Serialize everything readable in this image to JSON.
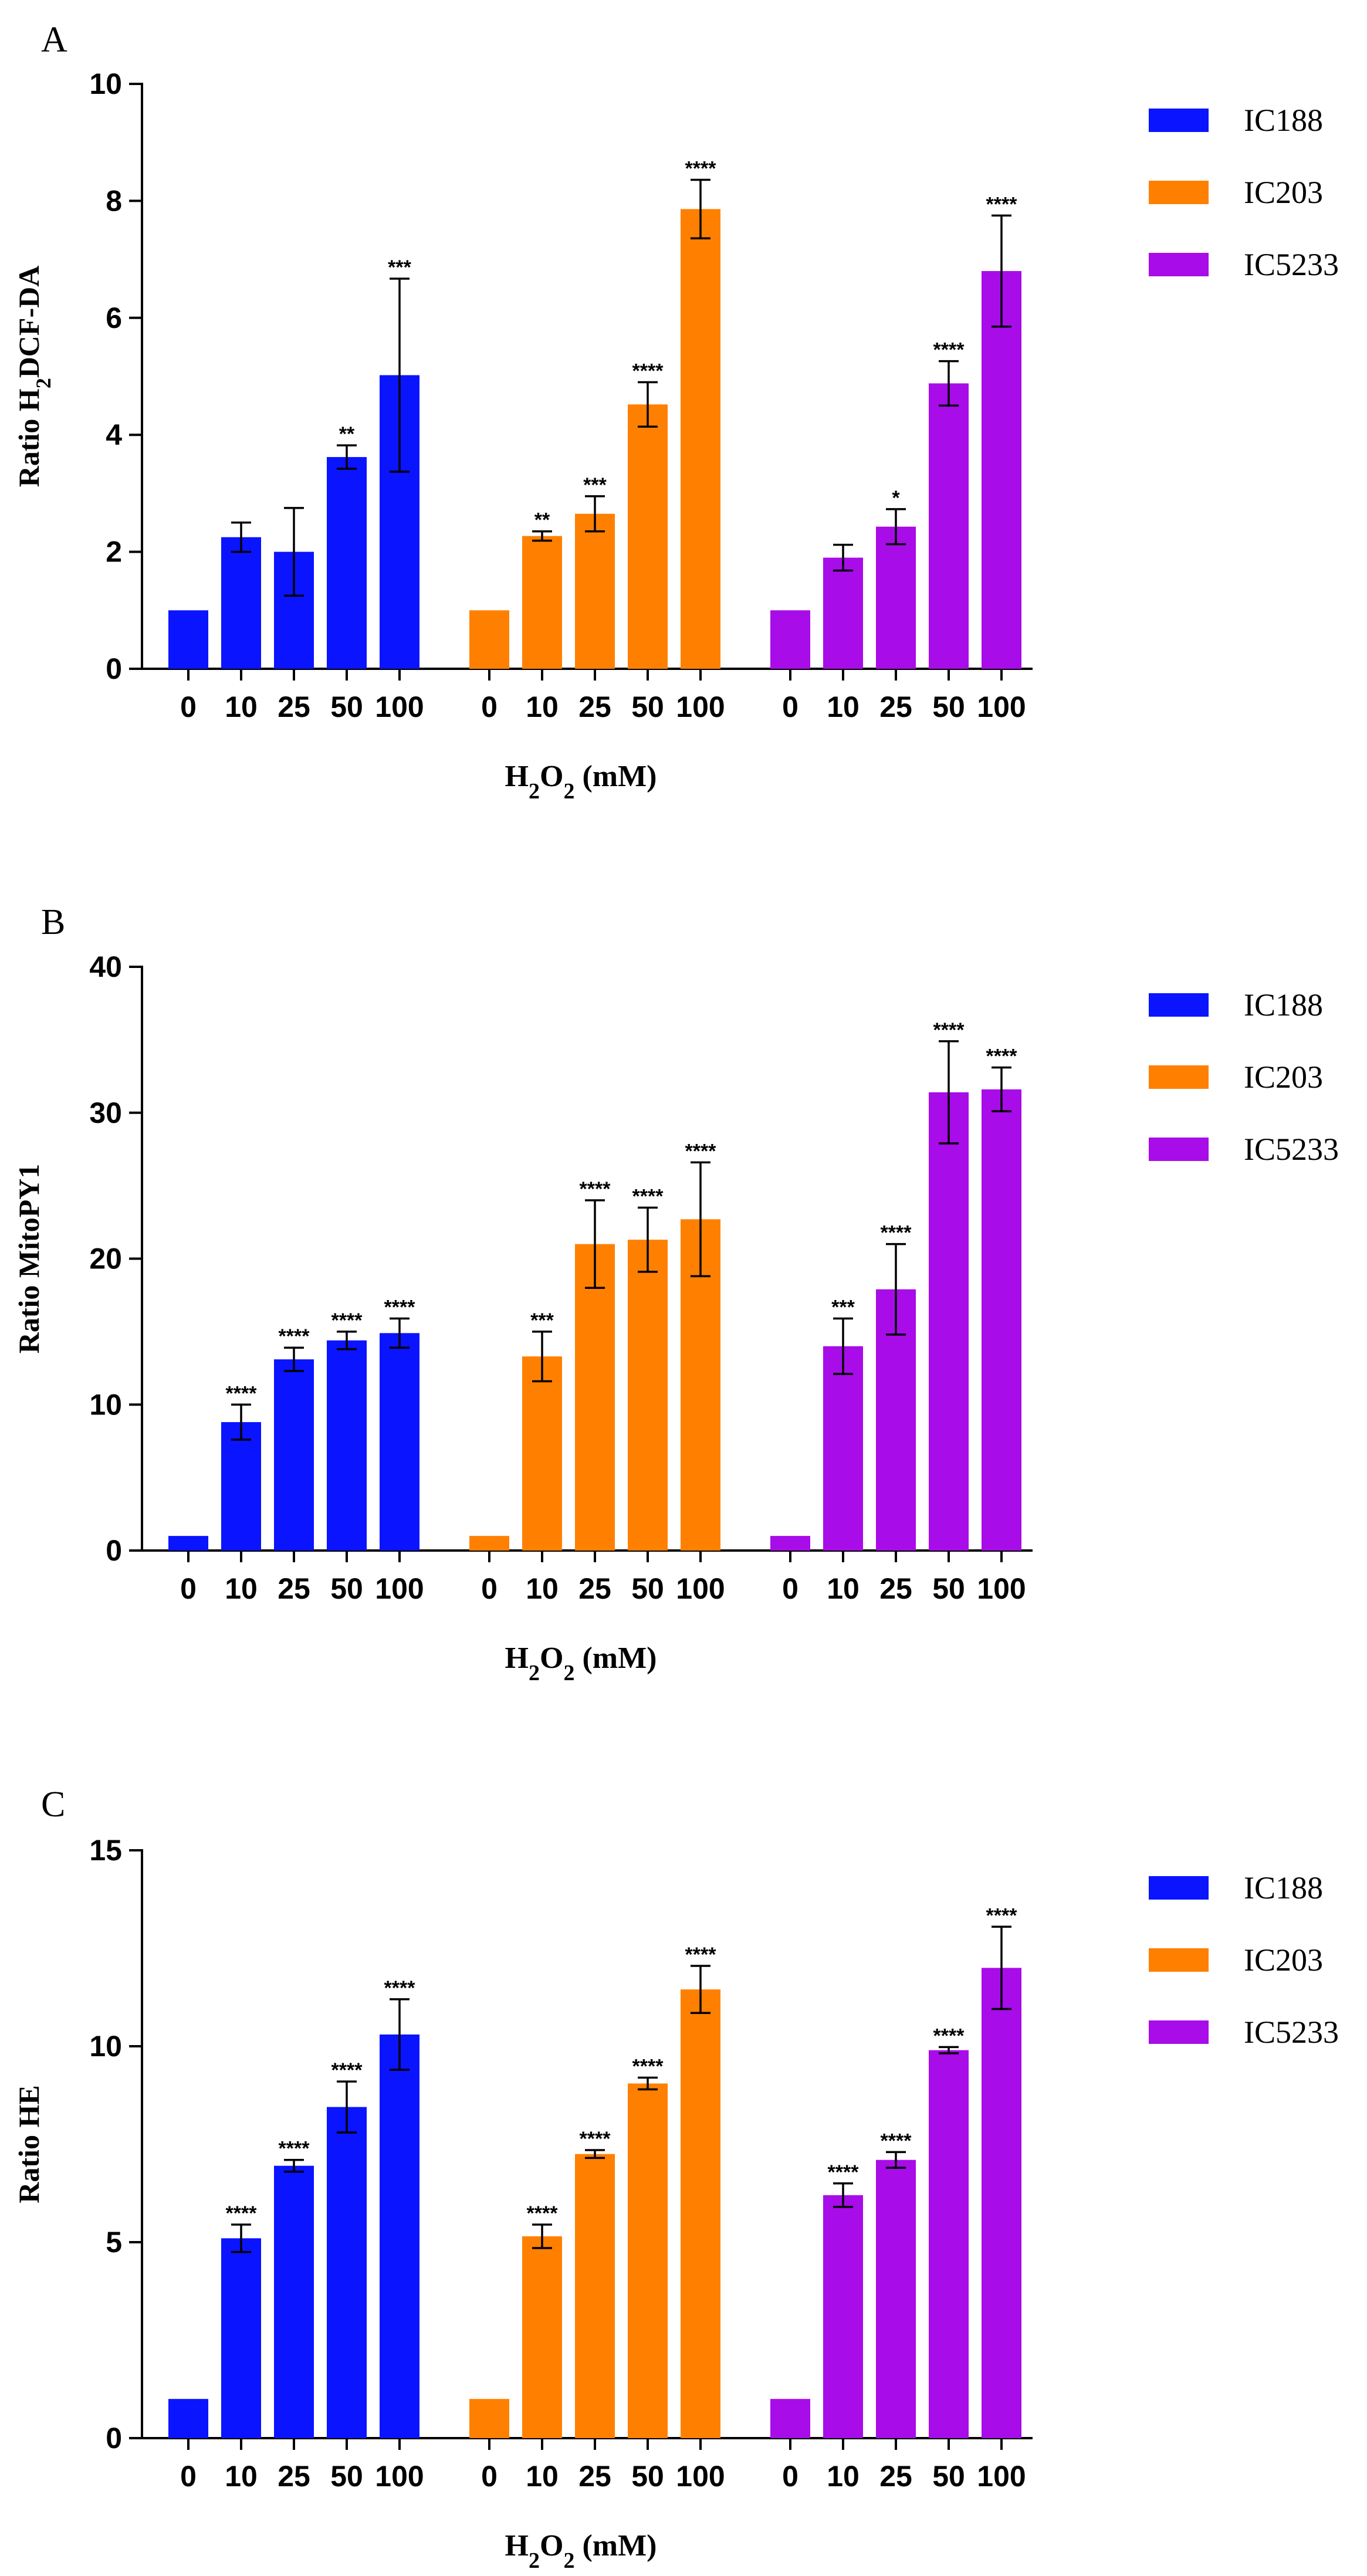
{
  "chart_data": [
    {
      "type": "bar",
      "panel": "A",
      "ylabel_main": "Ratio H",
      "ylabel_sub": "2",
      "ylabel_rest": "DCF-DA",
      "xlabel_a": "H",
      "xlabel_sub1": "2",
      "xlabel_b": "O",
      "xlabel_sub2": "2",
      "xlabel_c": " (mM)",
      "ylim": [
        0,
        10
      ],
      "yticks": [
        0,
        2,
        4,
        6,
        8,
        10
      ],
      "categories": [
        "0",
        "10",
        "25",
        "50",
        "100"
      ],
      "series": [
        {
          "name": "IC188",
          "color": "#0a14ff",
          "values": [
            1,
            2.25,
            2,
            3.62,
            5.02
          ],
          "errors": [
            0,
            0.25,
            0.75,
            0.2,
            1.65
          ],
          "sig": [
            "",
            "",
            "",
            "**",
            "***"
          ]
        },
        {
          "name": "IC203",
          "color": "#ff8000",
          "values": [
            1,
            2.27,
            2.65,
            4.52,
            7.86
          ],
          "errors": [
            0,
            0.08,
            0.3,
            0.38,
            0.5
          ],
          "sig": [
            "",
            "**",
            "***",
            "****",
            "****"
          ]
        },
        {
          "name": "IC5233",
          "color": "#a80ce8",
          "values": [
            1,
            1.9,
            2.43,
            4.88,
            6.8
          ],
          "errors": [
            0,
            0.22,
            0.3,
            0.38,
            0.95
          ],
          "sig": [
            "",
            "",
            "*",
            "****",
            "****"
          ]
        }
      ]
    },
    {
      "type": "bar",
      "panel": "B",
      "ylabel_main": "Ratio MitoPY1",
      "ylabel_sub": "",
      "ylabel_rest": "",
      "xlabel_a": "H",
      "xlabel_sub1": "2",
      "xlabel_b": "O",
      "xlabel_sub2": "2",
      "xlabel_c": " (mM)",
      "ylim": [
        0,
        40
      ],
      "yticks": [
        0,
        10,
        20,
        30,
        40
      ],
      "categories": [
        "0",
        "10",
        "25",
        "50",
        "100"
      ],
      "series": [
        {
          "name": "IC188",
          "color": "#0a14ff",
          "values": [
            1,
            8.8,
            13.1,
            14.4,
            14.9
          ],
          "errors": [
            0,
            1.2,
            0.8,
            0.6,
            1.0
          ],
          "sig": [
            "",
            "****",
            "****",
            "****",
            "****"
          ]
        },
        {
          "name": "IC203",
          "color": "#ff8000",
          "values": [
            1,
            13.3,
            21,
            21.3,
            22.7
          ],
          "errors": [
            0,
            1.7,
            3.0,
            2.2,
            3.9
          ],
          "sig": [
            "",
            "***",
            "****",
            "****",
            "****"
          ]
        },
        {
          "name": "IC5233",
          "color": "#a80ce8",
          "values": [
            1,
            14,
            17.9,
            31.4,
            31.6
          ],
          "errors": [
            0,
            1.9,
            3.1,
            3.5,
            1.5
          ],
          "sig": [
            "",
            "***",
            "****",
            "****",
            "****"
          ]
        }
      ]
    },
    {
      "type": "bar",
      "panel": "C",
      "ylabel_main": "Ratio HE",
      "ylabel_sub": "",
      "ylabel_rest": "",
      "xlabel_a": "H",
      "xlabel_sub1": "2",
      "xlabel_b": "O",
      "xlabel_sub2": "2",
      "xlabel_c": " (mM)",
      "ylim": [
        0,
        15
      ],
      "yticks": [
        0,
        5,
        10,
        15
      ],
      "categories": [
        "0",
        "10",
        "25",
        "50",
        "100"
      ],
      "series": [
        {
          "name": "IC188",
          "color": "#0a14ff",
          "values": [
            1,
            5.1,
            6.95,
            8.45,
            10.3
          ],
          "errors": [
            0,
            0.35,
            0.15,
            0.65,
            0.9
          ],
          "sig": [
            "",
            "****",
            "****",
            "****",
            "****"
          ]
        },
        {
          "name": "IC203",
          "color": "#ff8000",
          "values": [
            1,
            5.15,
            7.25,
            9.05,
            11.45
          ],
          "errors": [
            0,
            0.3,
            0.1,
            0.15,
            0.6
          ],
          "sig": [
            "",
            "****",
            "****",
            "****",
            "****"
          ]
        },
        {
          "name": "IC5233",
          "color": "#a80ce8",
          "values": [
            1,
            6.2,
            7.1,
            9.9,
            12
          ],
          "errors": [
            0,
            0.3,
            0.2,
            0.08,
            1.05
          ],
          "sig": [
            "",
            "****",
            "****",
            "****",
            "****"
          ]
        }
      ]
    }
  ]
}
